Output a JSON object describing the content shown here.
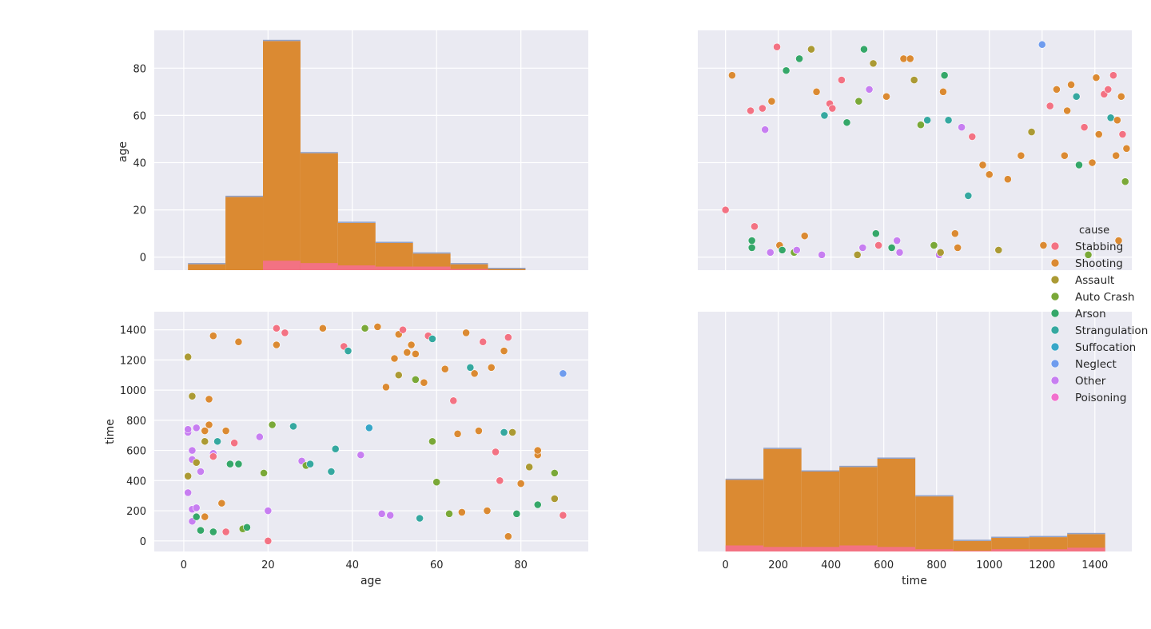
{
  "figure_style": {
    "panel_bg": "#eaeaf2",
    "grid": "#ffffff",
    "text": "#262626"
  },
  "legend": {
    "title": "cause",
    "items": [
      {
        "label": "Stabbing",
        "color": "#f37283"
      },
      {
        "label": "Shooting",
        "color": "#db8a32"
      },
      {
        "label": "Assault",
        "color": "#ab9a34"
      },
      {
        "label": "Auto Crash",
        "color": "#7aa838"
      },
      {
        "label": "Arson",
        "color": "#35a769"
      },
      {
        "label": "Strangulation",
        "color": "#35a8a0"
      },
      {
        "label": "Suffocation",
        "color": "#37a6c8"
      },
      {
        "label": "Neglect",
        "color": "#6f9cee"
      },
      {
        "label": "Other",
        "color": "#c77ef1"
      },
      {
        "label": "Poisoning",
        "color": "#f16fcd"
      }
    ]
  },
  "chart_data": [
    {
      "id": "age_hist",
      "type": "bar",
      "description_panel": "row 1, col 1",
      "xlabel": "",
      "ylabel": "age",
      "xlim": [
        -7,
        96
      ],
      "ylim": [
        -5.5,
        96
      ],
      "xticks": [
        0,
        20,
        40,
        60,
        80
      ],
      "yticks": [
        0,
        20,
        40,
        60,
        80
      ],
      "show_xticklabels": false,
      "bins": [
        1,
        9.9,
        18.8,
        27.7,
        36.6,
        45.5,
        54.4,
        63.3,
        72.2,
        81.1,
        90
      ],
      "totals": [
        -3,
        25.5,
        91.5,
        44,
        14.5,
        6,
        1.5,
        -3,
        -5,
        -5.5
      ],
      "stabbing_band": [
        -5.5,
        -5.5,
        -1.5,
        -2.5,
        -3.5,
        -4,
        -4,
        -5,
        -5.5,
        -5.5
      ],
      "series": [
        {
          "name": "Shooting",
          "color": "#db8a32"
        },
        {
          "name": "Stabbing",
          "color": "#f37283"
        }
      ]
    },
    {
      "id": "age_vs_time_scatter_top",
      "type": "scatter",
      "description_panel": "row 1, col 2",
      "xlabel": "",
      "ylabel": "",
      "xlim": [
        -105,
        1540
      ],
      "ylim": [
        -5.5,
        96
      ],
      "xticks": [
        0,
        200,
        400,
        600,
        800,
        1000,
        1200,
        1400
      ],
      "yticks": [
        0,
        20,
        40,
        60,
        80
      ],
      "show_xticklabels": false,
      "show_yticklabels": false,
      "points": [
        [
          0,
          20,
          "Stabbing"
        ],
        [
          25,
          77,
          "Shooting"
        ],
        [
          95,
          62,
          "Stabbing"
        ],
        [
          100,
          4,
          "Arson"
        ],
        [
          100,
          7,
          "Arson"
        ],
        [
          110,
          13,
          "Stabbing"
        ],
        [
          140,
          63,
          "Stabbing"
        ],
        [
          150,
          54,
          "Other"
        ],
        [
          170,
          2,
          "Other"
        ],
        [
          175,
          66,
          "Shooting"
        ],
        [
          195,
          89,
          "Stabbing"
        ],
        [
          205,
          5,
          "Shooting"
        ],
        [
          215,
          3,
          "Arson"
        ],
        [
          230,
          79,
          "Arson"
        ],
        [
          260,
          2,
          "Auto Crash"
        ],
        [
          270,
          3,
          "Other"
        ],
        [
          280,
          84,
          "Arson"
        ],
        [
          300,
          9,
          "Shooting"
        ],
        [
          325,
          88,
          "Assault"
        ],
        [
          345,
          70,
          "Shooting"
        ],
        [
          365,
          1,
          "Other"
        ],
        [
          375,
          60,
          "Strangulation"
        ],
        [
          395,
          65,
          "Stabbing"
        ],
        [
          405,
          63,
          "Stabbing"
        ],
        [
          440,
          75,
          "Stabbing"
        ],
        [
          460,
          57,
          "Arson"
        ],
        [
          500,
          1,
          "Assault"
        ],
        [
          505,
          66,
          "Auto Crash"
        ],
        [
          520,
          4,
          "Other"
        ],
        [
          525,
          88,
          "Arson"
        ],
        [
          545,
          71,
          "Other"
        ],
        [
          560,
          82,
          "Assault"
        ],
        [
          570,
          10,
          "Arson"
        ],
        [
          580,
          5,
          "Stabbing"
        ],
        [
          610,
          68,
          "Shooting"
        ],
        [
          630,
          4,
          "Arson"
        ],
        [
          650,
          7,
          "Other"
        ],
        [
          660,
          2,
          "Other"
        ],
        [
          675,
          84,
          "Shooting"
        ],
        [
          700,
          84,
          "Shooting"
        ],
        [
          715,
          75,
          "Assault"
        ],
        [
          740,
          56,
          "Auto Crash"
        ],
        [
          765,
          58,
          "Strangulation"
        ],
        [
          790,
          5,
          "Auto Crash"
        ],
        [
          810,
          1,
          "Other"
        ],
        [
          815,
          2,
          "Assault"
        ],
        [
          825,
          70,
          "Shooting"
        ],
        [
          830,
          77,
          "Arson"
        ],
        [
          845,
          58,
          "Strangulation"
        ],
        [
          870,
          10,
          "Shooting"
        ],
        [
          880,
          4,
          "Shooting"
        ],
        [
          895,
          55,
          "Other"
        ],
        [
          920,
          26,
          "Strangulation"
        ],
        [
          935,
          51,
          "Stabbing"
        ],
        [
          975,
          39,
          "Shooting"
        ],
        [
          1000,
          35,
          "Shooting"
        ],
        [
          1035,
          3,
          "Assault"
        ],
        [
          1070,
          33,
          "Shooting"
        ],
        [
          1120,
          43,
          "Shooting"
        ],
        [
          1160,
          53,
          "Assault"
        ],
        [
          1200,
          90,
          "Neglect"
        ],
        [
          1205,
          5,
          "Shooting"
        ],
        [
          1230,
          64,
          "Stabbing"
        ],
        [
          1255,
          71,
          "Shooting"
        ],
        [
          1285,
          43,
          "Shooting"
        ],
        [
          1295,
          62,
          "Shooting"
        ],
        [
          1310,
          73,
          "Shooting"
        ],
        [
          1330,
          68,
          "Strangulation"
        ],
        [
          1340,
          39,
          "Arson"
        ],
        [
          1360,
          55,
          "Stabbing"
        ],
        [
          1375,
          1,
          "Auto Crash"
        ],
        [
          1390,
          40,
          "Shooting"
        ],
        [
          1405,
          76,
          "Shooting"
        ],
        [
          1415,
          52,
          "Shooting"
        ],
        [
          1435,
          69,
          "Stabbing"
        ],
        [
          1450,
          71,
          "Stabbing"
        ],
        [
          1460,
          59,
          "Strangulation"
        ],
        [
          1470,
          77,
          "Stabbing"
        ],
        [
          1480,
          43,
          "Shooting"
        ],
        [
          1485,
          58,
          "Shooting"
        ],
        [
          1490,
          7,
          "Shooting"
        ],
        [
          1500,
          68,
          "Shooting"
        ],
        [
          1505,
          52,
          "Stabbing"
        ],
        [
          1515,
          32,
          "Auto Crash"
        ],
        [
          1520,
          46,
          "Shooting"
        ]
      ]
    },
    {
      "id": "time_vs_age_scatter",
      "type": "scatter",
      "description_panel": "row 2, col 1",
      "xlabel": "age",
      "ylabel": "time",
      "xlim": [
        -7,
        96
      ],
      "ylim": [
        -70,
        1520
      ],
      "xticks": [
        0,
        20,
        40,
        60,
        80
      ],
      "yticks": [
        0,
        200,
        400,
        600,
        800,
        1000,
        1200,
        1400
      ],
      "points": [
        [
          1,
          1220,
          "Assault"
        ],
        [
          1,
          720,
          "Other"
        ],
        [
          1,
          740,
          "Other"
        ],
        [
          1,
          430,
          "Assault"
        ],
        [
          1,
          320,
          "Other"
        ],
        [
          2,
          960,
          "Assault"
        ],
        [
          2,
          600,
          "Other"
        ],
        [
          2,
          540,
          "Other"
        ],
        [
          2,
          210,
          "Other"
        ],
        [
          2,
          130,
          "Other"
        ],
        [
          3,
          750,
          "Other"
        ],
        [
          3,
          520,
          "Assault"
        ],
        [
          3,
          220,
          "Other"
        ],
        [
          3,
          160,
          "Arson"
        ],
        [
          4,
          70,
          "Arson"
        ],
        [
          4,
          460,
          "Other"
        ],
        [
          5,
          730,
          "Shooting"
        ],
        [
          5,
          660,
          "Assault"
        ],
        [
          5,
          160,
          "Shooting"
        ],
        [
          6,
          940,
          "Shooting"
        ],
        [
          6,
          770,
          "Shooting"
        ],
        [
          7,
          1360,
          "Shooting"
        ],
        [
          7,
          580,
          "Other"
        ],
        [
          7,
          560,
          "Stabbing"
        ],
        [
          7,
          60,
          "Arson"
        ],
        [
          8,
          660,
          "Strangulation"
        ],
        [
          9,
          250,
          "Shooting"
        ],
        [
          10,
          730,
          "Shooting"
        ],
        [
          10,
          60,
          "Stabbing"
        ],
        [
          11,
          510,
          "Arson"
        ],
        [
          12,
          650,
          "Stabbing"
        ],
        [
          13,
          1320,
          "Shooting"
        ],
        [
          13,
          510,
          "Arson"
        ],
        [
          14,
          80,
          "Auto Crash"
        ],
        [
          15,
          90,
          "Arson"
        ],
        [
          18,
          690,
          "Other"
        ],
        [
          19,
          450,
          "Auto Crash"
        ],
        [
          20,
          0,
          "Stabbing"
        ],
        [
          20,
          200,
          "Other"
        ],
        [
          21,
          770,
          "Auto Crash"
        ],
        [
          22,
          1410,
          "Stabbing"
        ],
        [
          22,
          1300,
          "Shooting"
        ],
        [
          24,
          1380,
          "Stabbing"
        ],
        [
          26,
          760,
          "Strangulation"
        ],
        [
          28,
          530,
          "Other"
        ],
        [
          29,
          500,
          "Auto Crash"
        ],
        [
          30,
          510,
          "Strangulation"
        ],
        [
          33,
          1410,
          "Shooting"
        ],
        [
          35,
          460,
          "Strangulation"
        ],
        [
          36,
          610,
          "Strangulation"
        ],
        [
          38,
          1290,
          "Stabbing"
        ],
        [
          39,
          1260,
          "Strangulation"
        ],
        [
          42,
          570,
          "Other"
        ],
        [
          43,
          1410,
          "Auto Crash"
        ],
        [
          44,
          750,
          "Suffocation"
        ],
        [
          46,
          1420,
          "Shooting"
        ],
        [
          47,
          180,
          "Other"
        ],
        [
          48,
          1020,
          "Shooting"
        ],
        [
          49,
          170,
          "Other"
        ],
        [
          50,
          1210,
          "Shooting"
        ],
        [
          51,
          1370,
          "Shooting"
        ],
        [
          51,
          1100,
          "Assault"
        ],
        [
          52,
          1400,
          "Stabbing"
        ],
        [
          53,
          1250,
          "Shooting"
        ],
        [
          54,
          1300,
          "Shooting"
        ],
        [
          55,
          1240,
          "Shooting"
        ],
        [
          55,
          1070,
          "Auto Crash"
        ],
        [
          56,
          150,
          "Strangulation"
        ],
        [
          57,
          1050,
          "Shooting"
        ],
        [
          58,
          1360,
          "Stabbing"
        ],
        [
          59,
          1340,
          "Strangulation"
        ],
        [
          59,
          660,
          "Auto Crash"
        ],
        [
          60,
          390,
          "Auto Crash"
        ],
        [
          62,
          1140,
          "Shooting"
        ],
        [
          63,
          180,
          "Auto Crash"
        ],
        [
          64,
          930,
          "Stabbing"
        ],
        [
          65,
          710,
          "Shooting"
        ],
        [
          66,
          190,
          "Shooting"
        ],
        [
          67,
          1380,
          "Shooting"
        ],
        [
          68,
          1150,
          "Strangulation"
        ],
        [
          69,
          1110,
          "Shooting"
        ],
        [
          70,
          730,
          "Shooting"
        ],
        [
          71,
          1320,
          "Stabbing"
        ],
        [
          72,
          200,
          "Shooting"
        ],
        [
          73,
          1150,
          "Shooting"
        ],
        [
          74,
          590,
          "Stabbing"
        ],
        [
          75,
          400,
          "Stabbing"
        ],
        [
          76,
          1260,
          "Shooting"
        ],
        [
          76,
          720,
          "Strangulation"
        ],
        [
          77,
          1350,
          "Stabbing"
        ],
        [
          77,
          30,
          "Shooting"
        ],
        [
          78,
          720,
          "Assault"
        ],
        [
          79,
          180,
          "Arson"
        ],
        [
          80,
          380,
          "Shooting"
        ],
        [
          82,
          490,
          "Assault"
        ],
        [
          84,
          240,
          "Arson"
        ],
        [
          84,
          570,
          "Shooting"
        ],
        [
          84,
          600,
          "Shooting"
        ],
        [
          88,
          450,
          "Auto Crash"
        ],
        [
          88,
          280,
          "Assault"
        ],
        [
          90,
          1110,
          "Neglect"
        ],
        [
          90,
          170,
          "Stabbing"
        ]
      ]
    },
    {
      "id": "time_hist",
      "type": "bar",
      "description_panel": "row 2, col 2",
      "xlabel": "time",
      "ylabel": "",
      "xlim": [
        -105,
        1540
      ],
      "ylim": [
        -70,
        1520
      ],
      "xticks": [
        0,
        200,
        400,
        600,
        800,
        1000,
        1200,
        1400
      ],
      "show_yticklabels": false,
      "bins": [
        0,
        143.9,
        287.8,
        431.7,
        575.6,
        719.5,
        863.4,
        1007.3,
        1151.2,
        1295.1,
        1439
      ],
      "totals": [
        405,
        610,
        460,
        490,
        545,
        295,
        0,
        20,
        25,
        45
      ],
      "stabbing_band": [
        -30,
        -40,
        -40,
        -30,
        -40,
        -55,
        -65,
        -55,
        -55,
        -45
      ],
      "series": [
        {
          "name": "Shooting",
          "color": "#db8a32"
        },
        {
          "name": "Stabbing",
          "color": "#f37283"
        }
      ]
    }
  ]
}
